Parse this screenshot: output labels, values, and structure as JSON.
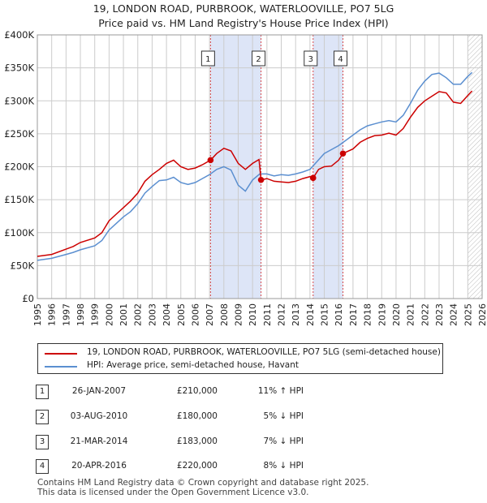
{
  "title_line1": "19, LONDON ROAD, PURBROOK, WATERLOOVILLE, PO7 5LG",
  "title_line2": "Price paid vs. HM Land Registry's House Price Index (HPI)",
  "colors": {
    "property": "#cc0000",
    "hpi": "#5b8fd0",
    "shade": "#dde5f7",
    "grid": "#cccccc"
  },
  "chart_data": {
    "type": "line",
    "xlim": [
      1995,
      2026
    ],
    "ylim": [
      0,
      400000
    ],
    "x_ticks": [
      "1995",
      "1996",
      "1997",
      "1998",
      "1999",
      "2000",
      "2001",
      "2002",
      "2003",
      "2004",
      "2005",
      "2006",
      "2007",
      "2008",
      "2009",
      "2010",
      "2011",
      "2012",
      "2013",
      "2014",
      "2015",
      "2016",
      "2017",
      "2018",
      "2019",
      "2020",
      "2021",
      "2022",
      "2023",
      "2024",
      "2025",
      "2026"
    ],
    "y_ticks": [
      {
        "value": 0,
        "label": "£0"
      },
      {
        "value": 50000,
        "label": "£50K"
      },
      {
        "value": 100000,
        "label": "£100K"
      },
      {
        "value": 150000,
        "label": "£150K"
      },
      {
        "value": 200000,
        "label": "£200K"
      },
      {
        "value": 250000,
        "label": "£250K"
      },
      {
        "value": 300000,
        "label": "£300K"
      },
      {
        "value": 350000,
        "label": "£350K"
      },
      {
        "value": 400000,
        "label": "£400K"
      }
    ],
    "shaded_periods": [
      [
        2007.07,
        2010.59
      ],
      [
        2014.22,
        2016.3
      ]
    ],
    "forecast_start": 2025.0,
    "series": [
      {
        "name": "19, LONDON ROAD, PURBROOK, WATERLOOVILLE, PO7 5LG (semi-detached house)",
        "x": [
          1995,
          1996,
          1997,
          1997.5,
          1998,
          1999,
          1999.5,
          2000,
          2000.5,
          2001,
          2001.5,
          2002,
          2002.5,
          2003,
          2003.5,
          2004,
          2004.5,
          2005,
          2005.5,
          2006,
          2006.5,
          2007.07,
          2007.5,
          2008,
          2008.5,
          2009,
          2009.5,
          2010,
          2010.45,
          2010.59,
          2011,
          2011.5,
          2012,
          2012.5,
          2013,
          2013.5,
          2014,
          2014.22,
          2014.6,
          2015,
          2015.5,
          2016,
          2016.3,
          2017,
          2017.5,
          2018,
          2018.5,
          2019,
          2019.5,
          2020,
          2020.5,
          2021,
          2021.5,
          2022,
          2022.5,
          2023,
          2023.5,
          2024,
          2024.5,
          2025,
          2025.3
        ],
        "y": [
          64000,
          67000,
          75000,
          79000,
          85000,
          92000,
          100000,
          118000,
          128000,
          138000,
          148000,
          160000,
          178000,
          188000,
          196000,
          205000,
          210000,
          200000,
          196000,
          198000,
          203000,
          210000,
          220000,
          228000,
          224000,
          205000,
          196000,
          205000,
          211000,
          180000,
          182000,
          178000,
          177000,
          176000,
          178000,
          182000,
          185000,
          183000,
          196000,
          200000,
          201000,
          210000,
          220000,
          227000,
          237000,
          243000,
          247000,
          248000,
          251000,
          248000,
          258000,
          275000,
          290000,
          300000,
          307000,
          314000,
          312000,
          298000,
          296000,
          308000,
          315000
        ]
      },
      {
        "name": "HPI: Average price, semi-detached house, Havant",
        "x": [
          1995,
          1996,
          1997,
          1997.5,
          1998,
          1999,
          1999.5,
          2000,
          2000.5,
          2001,
          2001.5,
          2002,
          2002.5,
          2003,
          2003.5,
          2004,
          2004.5,
          2005,
          2005.5,
          2006,
          2006.5,
          2007,
          2007.5,
          2008,
          2008.5,
          2009,
          2009.5,
          2010,
          2010.5,
          2011,
          2011.5,
          2012,
          2012.5,
          2013,
          2013.5,
          2014,
          2014.5,
          2015,
          2015.5,
          2016,
          2016.5,
          2017,
          2017.5,
          2018,
          2018.5,
          2019,
          2019.5,
          2020,
          2020.5,
          2021,
          2021.5,
          2022,
          2022.5,
          2023,
          2023.5,
          2024,
          2024.5,
          2025,
          2025.3
        ],
        "y": [
          58000,
          61000,
          67000,
          70000,
          74000,
          80000,
          88000,
          104000,
          114000,
          124000,
          132000,
          144000,
          160000,
          170000,
          179000,
          180000,
          184000,
          176000,
          173000,
          176000,
          182000,
          188000,
          196000,
          200000,
          195000,
          172000,
          163000,
          180000,
          189000,
          189000,
          186000,
          188000,
          187000,
          189000,
          192000,
          196000,
          208000,
          220000,
          226000,
          232000,
          240000,
          248000,
          256000,
          262000,
          265000,
          268000,
          270000,
          268000,
          278000,
          296000,
          316000,
          330000,
          340000,
          342000,
          335000,
          325000,
          325000,
          337000,
          343000
        ]
      }
    ],
    "sale_markers": [
      {
        "label": "1",
        "x": 2007.07,
        "y": 210000
      },
      {
        "label": "2",
        "x": 2010.59,
        "y": 180000
      },
      {
        "label": "3",
        "x": 2014.22,
        "y": 183000
      },
      {
        "label": "4",
        "x": 2016.3,
        "y": 220000
      }
    ]
  },
  "legend": [
    {
      "label": "19, LONDON ROAD, PURBROOK, WATERLOOVILLE, PO7 5LG (semi-detached house)",
      "color": "#cc0000"
    },
    {
      "label": "HPI: Average price, semi-detached house, Havant",
      "color": "#5b8fd0"
    }
  ],
  "sales": [
    {
      "num": "1",
      "date": "26-JAN-2007",
      "price": "£210,000",
      "hpi": "11% ↑ HPI"
    },
    {
      "num": "2",
      "date": "03-AUG-2010",
      "price": "£180,000",
      "hpi": "5% ↓ HPI"
    },
    {
      "num": "3",
      "date": "21-MAR-2014",
      "price": "£183,000",
      "hpi": "7% ↓ HPI"
    },
    {
      "num": "4",
      "date": "20-APR-2016",
      "price": "£220,000",
      "hpi": "8% ↓ HPI"
    }
  ],
  "footer_line1": "Contains HM Land Registry data © Crown copyright and database right 2025.",
  "footer_line2": "This data is licensed under the Open Government Licence v3.0."
}
